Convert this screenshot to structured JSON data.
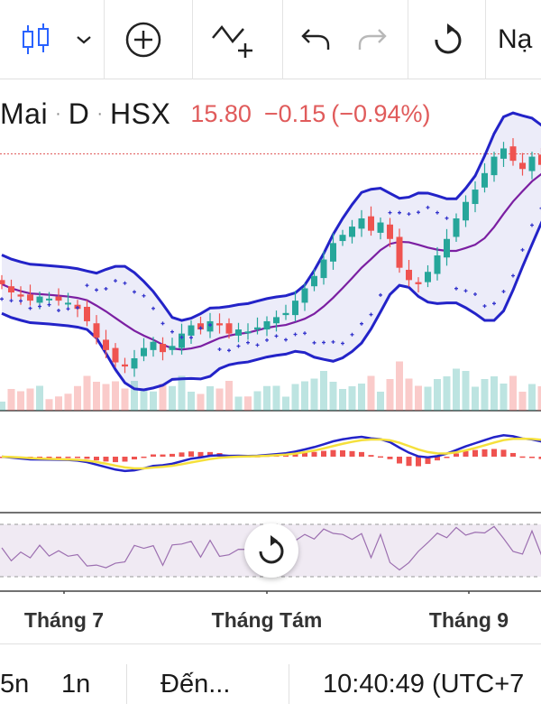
{
  "toolbar": {
    "candles_icon": "candlestick-icon",
    "plus_icon": "crosshair-plus-icon",
    "indicator_icon": "indicator-add-icon",
    "undo_icon": "undo-icon",
    "redo_icon": "redo-icon",
    "reset_icon": "reset-icon",
    "load_label": "Nạ",
    "accent": "#2962ff"
  },
  "legend": {
    "symbol": "Mai",
    "interval": "D",
    "exchange": "HSX",
    "price": "15.80",
    "change": "−0.15",
    "change_pct": "(−0.94%)",
    "price_color": "#e05b5b"
  },
  "xaxis": {
    "labels": [
      "Tháng 7",
      "Tháng Tám",
      "Tháng 9"
    ]
  },
  "bottom": {
    "range_5n": "5n",
    "range_1n": "1n",
    "goto": "Đến...",
    "clock": "10:40:49 (UTC+7"
  },
  "colors": {
    "up": "#26a69a",
    "down": "#ef5350",
    "band": "#2323c8",
    "basis": "#7b1fa2",
    "sar": "#3333cc",
    "macd_signal": "#f5e03c",
    "rsi": "#9c6fb0"
  },
  "chart_data": {
    "type": "candlestick",
    "symbol": "Mai",
    "interval": "D",
    "exchange": "HSX",
    "x_labels": [
      "Tháng 7",
      "Tháng Tám",
      "Tháng 9"
    ],
    "last": 15.8,
    "change": -0.15,
    "change_pct": -0.94,
    "series": [
      {
        "name": "price",
        "values": [
          12.5,
          12.3,
          12.2,
          12.1,
          12.2,
          12.15,
          12.1,
          12.05,
          11.9,
          11.6,
          11.2,
          10.9,
          10.6,
          10.5,
          10.7,
          10.95,
          11.1,
          10.85,
          11.0,
          11.3,
          11.5,
          11.4,
          11.6,
          11.5,
          11.3,
          11.4,
          11.35,
          11.45,
          11.6,
          11.7,
          11.8,
          12.1,
          12.4,
          12.7,
          13.1,
          13.5,
          13.7,
          13.9,
          14.1,
          13.8,
          14.0,
          13.6,
          12.9,
          12.6,
          12.5,
          12.8,
          13.2,
          13.6,
          14.1,
          14.5,
          14.8,
          15.2,
          15.6,
          15.8,
          15.5,
          15.3,
          15.6,
          15.4,
          15.7,
          15.8
        ]
      }
    ]
  }
}
